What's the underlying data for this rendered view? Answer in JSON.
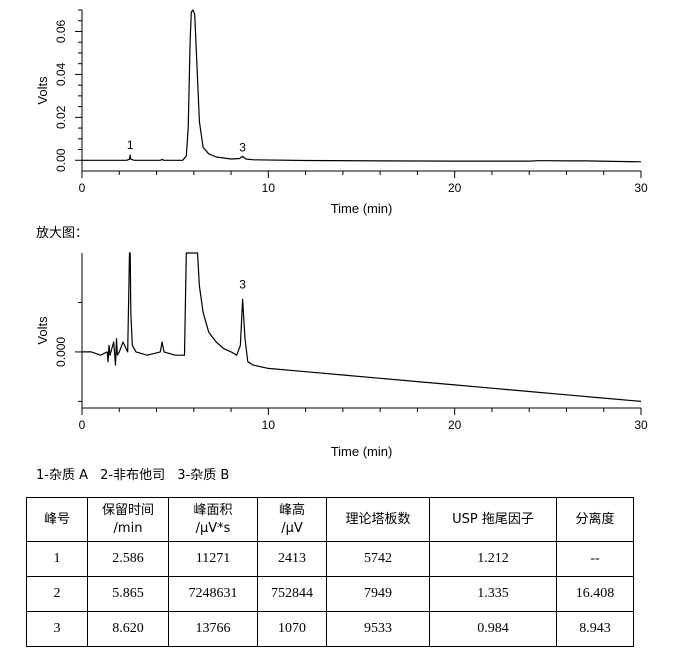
{
  "chart_data": [
    {
      "type": "line",
      "xlabel": "Time (min)",
      "ylabel": "Volts",
      "xlim": [
        0,
        30
      ],
      "ylim": [
        -0.005,
        0.07
      ],
      "xticks": [
        0,
        10,
        20,
        30
      ],
      "yticks": [
        0.0,
        0.02,
        0.04,
        0.06
      ],
      "ytick_labels": [
        "0.00",
        "0.02",
        "0.04",
        "0.06"
      ],
      "peak_labels": [
        {
          "text": "1",
          "x": 2.586,
          "y": 0.0035
        },
        {
          "text": "3",
          "x": 8.62,
          "y": 0.0022
        }
      ],
      "series": [
        {
          "x": [
            0,
            2.4,
            2.55,
            2.586,
            2.62,
            2.8,
            4.2,
            4.3,
            4.4,
            5.4,
            5.6,
            5.7,
            5.8,
            5.865,
            5.95,
            6.05,
            6.15,
            6.3,
            6.5,
            6.8,
            7.2,
            8.0,
            8.45,
            8.62,
            8.8,
            9.2,
            12,
            16,
            20,
            24,
            24.5,
            25,
            26,
            27,
            30
          ],
          "y": [
            0.0,
            0.0,
            0.0005,
            0.0024,
            0.0005,
            0.0,
            0.0,
            0.0004,
            0.0,
            0.0,
            0.002,
            0.015,
            0.055,
            0.069,
            0.07,
            0.068,
            0.048,
            0.018,
            0.006,
            0.003,
            0.0015,
            0.0006,
            0.0008,
            0.0018,
            0.0006,
            0.0002,
            -0.0001,
            -0.0003,
            -0.0004,
            -0.0004,
            -0.0002,
            -0.0002,
            -0.0003,
            -0.0003,
            -0.0007
          ]
        }
      ]
    },
    {
      "type": "line",
      "xlabel": "Time (min)",
      "ylabel": "Volts",
      "xlim": [
        0,
        30
      ],
      "ylim": [
        -0.0017,
        0.003
      ],
      "xticks": [
        0,
        10,
        20,
        30
      ],
      "yticks": [
        0.0
      ],
      "ytick_labels": [
        "0.000"
      ],
      "peak_labels": [
        {
          "text": "3",
          "x": 8.62,
          "y": 0.0018
        }
      ],
      "series": [
        {
          "x": [
            0,
            0.5,
            1.0,
            1.35,
            1.4,
            1.45,
            1.5,
            1.7,
            1.8,
            1.85,
            1.9,
            2.0,
            2.2,
            2.45,
            2.5,
            2.55,
            2.586,
            2.62,
            2.7,
            2.9,
            3.5,
            4.2,
            4.3,
            4.4,
            5.0,
            5.5,
            5.6,
            5.7,
            5.865,
            6.2,
            6.3,
            6.5,
            6.8,
            7.2,
            7.6,
            8.0,
            8.3,
            8.5,
            8.62,
            8.75,
            8.9,
            9.2,
            10,
            12,
            14,
            16,
            18,
            20,
            22,
            24,
            26,
            28,
            30
          ],
          "y": [
            0.0,
            0.0,
            -0.0001,
            0.0,
            -0.0003,
            0.0002,
            -0.0001,
            0.0003,
            -0.0004,
            0.0004,
            -0.0001,
            0.0,
            0.0003,
            0.0,
            0.0015,
            0.003,
            0.003,
            0.0012,
            0.0002,
            0.0,
            -0.0001,
            0.0,
            0.0003,
            0.0,
            -0.0001,
            -0.0001,
            0.003,
            0.003,
            0.003,
            0.003,
            0.002,
            0.0012,
            0.0006,
            0.0003,
            0.0001,
            0.0,
            -0.0001,
            0.0002,
            0.0016,
            0.0004,
            -0.0003,
            -0.0004,
            -0.0005,
            -0.0006,
            -0.0007,
            -0.0008,
            -0.0009,
            -0.001,
            -0.0011,
            -0.0012,
            -0.0013,
            -0.0014,
            -0.0015
          ]
        }
      ]
    }
  ],
  "zoom_title": "放大图：",
  "legend": [
    "1-杂质 A",
    "2-非布他司",
    "3-杂质 B"
  ],
  "table": {
    "headers": [
      [
        "峰号"
      ],
      [
        "保留时间",
        "/min"
      ],
      [
        "峰面积",
        "/µV*s"
      ],
      [
        "峰高",
        "/µV"
      ],
      [
        "理论塔板数"
      ],
      [
        "USP 拖尾因子"
      ],
      [
        "分离度"
      ]
    ],
    "rows": [
      [
        "1",
        "2.586",
        "11271",
        "2413",
        "5742",
        "1.212",
        "--"
      ],
      [
        "2",
        "5.865",
        "7248631",
        "752844",
        "7949",
        "1.335",
        "16.408"
      ],
      [
        "3",
        "8.620",
        "13766",
        "1070",
        "9533",
        "0.984",
        "8.943"
      ]
    ]
  }
}
